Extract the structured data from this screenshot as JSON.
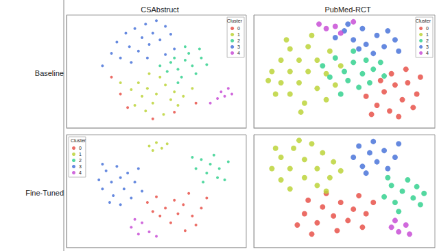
{
  "column_titles": [
    "CSAbstruct",
    "PubMed-RCT"
  ],
  "row_labels": [
    "Baseline",
    "Fine-Tuned"
  ],
  "chart_data": [
    {
      "type": "scatter",
      "xlim": [
        0,
        100
      ],
      "ylim": [
        0,
        100
      ],
      "tick_labels": false,
      "grid": false,
      "legend": "upper right",
      "legend_title": "Cluster",
      "series": [
        {
          "name": "0",
          "color": "#e8524a",
          "values": [
            [
              34,
              18
            ],
            [
              48,
              8
            ],
            [
              60,
              14
            ],
            [
              30,
              30
            ],
            [
              72,
              22
            ],
            [
              25,
              45
            ]
          ]
        },
        {
          "name": "1",
          "color": "#bcd43a",
          "values": [
            [
              40,
              40
            ],
            [
              45,
              35
            ],
            [
              50,
              30
            ],
            [
              55,
              38
            ],
            [
              60,
              32
            ],
            [
              48,
              22
            ],
            [
              42,
              28
            ],
            [
              36,
              34
            ],
            [
              52,
              45
            ],
            [
              58,
              25
            ],
            [
              65,
              28
            ],
            [
              44,
              15
            ],
            [
              38,
              20
            ],
            [
              62,
              20
            ],
            [
              30,
              40
            ],
            [
              70,
              35
            ],
            [
              54,
              12
            ],
            [
              46,
              48
            ]
          ]
        },
        {
          "name": "2",
          "color": "#35d18f",
          "values": [
            [
              58,
              58
            ],
            [
              62,
              52
            ],
            [
              66,
              60
            ],
            [
              70,
              55
            ],
            [
              72,
              48
            ],
            [
              64,
              45
            ],
            [
              68,
              66
            ],
            [
              75,
              62
            ],
            [
              60,
              62
            ],
            [
              56,
              50
            ],
            [
              74,
              70
            ],
            [
              78,
              56
            ],
            [
              66,
              72
            ],
            [
              62,
              40
            ],
            [
              52,
              55
            ]
          ]
        },
        {
          "name": "3",
          "color": "#4a74d9",
          "values": [
            [
              38,
              88
            ],
            [
              44,
              92
            ],
            [
              50,
              95
            ],
            [
              55,
              90
            ],
            [
              42,
              80
            ],
            [
              48,
              84
            ],
            [
              52,
              78
            ],
            [
              58,
              83
            ],
            [
              35,
              72
            ],
            [
              40,
              68
            ],
            [
              46,
              74
            ],
            [
              30,
              62
            ],
            [
              36,
              58
            ],
            [
              25,
              66
            ],
            [
              28,
              76
            ],
            [
              33,
              84
            ],
            [
              60,
              70
            ],
            [
              55,
              65
            ],
            [
              20,
              55
            ],
            [
              45,
              62
            ]
          ]
        },
        {
          "name": "4",
          "color": "#c84fd6",
          "values": [
            [
              86,
              32
            ],
            [
              88,
              28
            ],
            [
              90,
              35
            ],
            [
              84,
              26
            ],
            [
              92,
              30
            ],
            [
              80,
              22
            ]
          ]
        }
      ]
    },
    {
      "type": "scatter",
      "xlim": [
        0,
        100
      ],
      "ylim": [
        0,
        100
      ],
      "tick_labels": false,
      "grid": false,
      "legend": "upper right",
      "legend_title": "Cluster",
      "series": [
        {
          "name": "0",
          "color": "#e8524a",
          "values": [
            [
              62,
              28
            ],
            [
              68,
              20
            ],
            [
              72,
              32
            ],
            [
              75,
              15
            ],
            [
              78,
              38
            ],
            [
              82,
              25
            ],
            [
              85,
              40
            ],
            [
              88,
              18
            ],
            [
              90,
              30
            ],
            [
              80,
              10
            ],
            [
              70,
              42
            ],
            [
              65,
              12
            ],
            [
              92,
              45
            ],
            [
              84,
              52
            ],
            [
              76,
              48
            ]
          ]
        },
        {
          "name": "1",
          "color": "#bcd43a",
          "values": [
            [
              10,
              50
            ],
            [
              15,
              40
            ],
            [
              15,
              60
            ],
            [
              20,
              30
            ],
            [
              20,
              50
            ],
            [
              20,
              70
            ],
            [
              25,
              40
            ],
            [
              25,
              60
            ],
            [
              28,
              22
            ],
            [
              30,
              50
            ],
            [
              30,
              72
            ],
            [
              35,
              35
            ],
            [
              35,
              60
            ],
            [
              40,
              25
            ],
            [
              40,
              48
            ],
            [
              42,
              68
            ],
            [
              45,
              38
            ],
            [
              12,
              30
            ],
            [
              18,
              78
            ],
            [
              48,
              55
            ],
            [
              8,
              42
            ],
            [
              32,
              82
            ],
            [
              26,
              14
            ]
          ]
        },
        {
          "name": "2",
          "color": "#35d18f",
          "values": [
            [
              38,
              55
            ],
            [
              45,
              62
            ],
            [
              50,
              50
            ],
            [
              55,
              58
            ],
            [
              52,
              42
            ],
            [
              60,
              48
            ],
            [
              62,
              60
            ],
            [
              58,
              36
            ],
            [
              66,
              52
            ],
            [
              70,
              58
            ],
            [
              48,
              30
            ],
            [
              42,
              45
            ],
            [
              64,
              40
            ],
            [
              72,
              46
            ],
            [
              55,
              68
            ]
          ]
        },
        {
          "name": "3",
          "color": "#4a74d9",
          "values": [
            [
              45,
              80
            ],
            [
              50,
              86
            ],
            [
              55,
              78
            ],
            [
              60,
              88
            ],
            [
              62,
              74
            ],
            [
              68,
              82
            ],
            [
              72,
              72
            ],
            [
              74,
              86
            ],
            [
              78,
              78
            ],
            [
              66,
              66
            ],
            [
              52,
              92
            ],
            [
              80,
              68
            ],
            [
              58,
              70
            ]
          ]
        },
        {
          "name": "4",
          "color": "#c84fd6",
          "values": [
            [
              45,
              90
            ],
            [
              48,
              84
            ],
            [
              40,
              88
            ],
            [
              55,
              94
            ],
            [
              36,
              92
            ]
          ]
        }
      ]
    },
    {
      "type": "scatter",
      "xlim": [
        0,
        100
      ],
      "ylim": [
        0,
        100
      ],
      "tick_labels": false,
      "grid": false,
      "legend": "upper left",
      "legend_title": "Cluster",
      "series": [
        {
          "name": "0",
          "color": "#e8524a",
          "values": [
            [
              45,
              40
            ],
            [
              50,
              45
            ],
            [
              55,
              35
            ],
            [
              60,
              42
            ],
            [
              62,
              30
            ],
            [
              65,
              38
            ],
            [
              70,
              28
            ],
            [
              72,
              20
            ],
            [
              68,
              48
            ],
            [
              58,
              22
            ],
            [
              52,
              28
            ],
            [
              75,
              35
            ],
            [
              66,
              15
            ],
            [
              48,
              32
            ],
            [
              78,
              44
            ]
          ]
        },
        {
          "name": "1",
          "color": "#bcd43a",
          "values": [
            [
              46,
              90
            ],
            [
              50,
              93
            ],
            [
              53,
              88
            ],
            [
              48,
              86
            ],
            [
              56,
              92
            ]
          ]
        },
        {
          "name": "2",
          "color": "#35d18f",
          "values": [
            [
              72,
              70
            ],
            [
              75,
              78
            ],
            [
              78,
              66
            ],
            [
              80,
              74
            ],
            [
              82,
              82
            ],
            [
              85,
              70
            ],
            [
              88,
              60
            ],
            [
              76,
              58
            ],
            [
              90,
              76
            ],
            [
              84,
              62
            ],
            [
              70,
              80
            ]
          ]
        },
        {
          "name": "3",
          "color": "#4a74d9",
          "values": [
            [
              18,
              60
            ],
            [
              20,
              52
            ],
            [
              22,
              68
            ],
            [
              25,
              58
            ],
            [
              26,
              46
            ],
            [
              28,
              72
            ],
            [
              30,
              62
            ],
            [
              32,
              52
            ],
            [
              34,
              66
            ],
            [
              36,
              44
            ],
            [
              38,
              58
            ],
            [
              24,
              40
            ],
            [
              40,
              70
            ],
            [
              20,
              74
            ],
            [
              30,
              38
            ],
            [
              42,
              50
            ]
          ]
        },
        {
          "name": "4",
          "color": "#c84fd6",
          "values": [
            [
              36,
              18
            ],
            [
              40,
              12
            ],
            [
              42,
              22
            ],
            [
              46,
              14
            ],
            [
              38,
              25
            ],
            [
              50,
              10
            ]
          ]
        }
      ]
    },
    {
      "type": "scatter",
      "xlim": [
        0,
        100
      ],
      "ylim": [
        0,
        100
      ],
      "tick_labels": false,
      "grid": false,
      "series": [
        {
          "name": "0",
          "color": "#e8524a",
          "values": [
            [
              28,
              30
            ],
            [
              30,
              42
            ],
            [
              35,
              22
            ],
            [
              38,
              36
            ],
            [
              40,
              48
            ],
            [
              44,
              28
            ],
            [
              46,
              15
            ],
            [
              48,
              40
            ],
            [
              52,
              24
            ],
            [
              55,
              34
            ],
            [
              58,
              46
            ],
            [
              60,
              18
            ],
            [
              62,
              30
            ],
            [
              32,
              12
            ],
            [
              24,
              20
            ],
            [
              66,
              40
            ]
          ]
        },
        {
          "name": "1",
          "color": "#bcd43a",
          "values": [
            [
              10,
              70
            ],
            [
              15,
              60
            ],
            [
              15,
              80
            ],
            [
              20,
              52
            ],
            [
              20,
              70
            ],
            [
              22,
              88
            ],
            [
              28,
              62
            ],
            [
              28,
              78
            ],
            [
              32,
              92
            ],
            [
              35,
              55
            ],
            [
              35,
              70
            ],
            [
              38,
              84
            ],
            [
              42,
              62
            ],
            [
              44,
              76
            ],
            [
              12,
              88
            ],
            [
              25,
              95
            ],
            [
              48,
              68
            ],
            [
              40,
              50
            ]
          ]
        },
        {
          "name": "2",
          "color": "#35d18f",
          "values": [
            [
              72,
              45
            ],
            [
              76,
              55
            ],
            [
              78,
              40
            ],
            [
              82,
              50
            ],
            [
              85,
              60
            ],
            [
              88,
              44
            ],
            [
              90,
              54
            ],
            [
              92,
              38
            ],
            [
              80,
              32
            ],
            [
              74,
              62
            ],
            [
              94,
              48
            ]
          ]
        },
        {
          "name": "3",
          "color": "#4a74d9",
          "values": [
            [
              55,
              80
            ],
            [
              58,
              90
            ],
            [
              60,
              72
            ],
            [
              64,
              84
            ],
            [
              66,
              94
            ],
            [
              68,
              76
            ],
            [
              72,
              86
            ],
            [
              74,
              70
            ],
            [
              78,
              80
            ],
            [
              62,
              66
            ],
            [
              80,
              92
            ]
          ]
        },
        {
          "name": "4",
          "color": "#c84fd6",
          "values": [
            [
              76,
              18
            ],
            [
              80,
              14
            ],
            [
              84,
              20
            ],
            [
              78,
              24
            ],
            [
              86,
              12
            ]
          ]
        }
      ]
    }
  ]
}
